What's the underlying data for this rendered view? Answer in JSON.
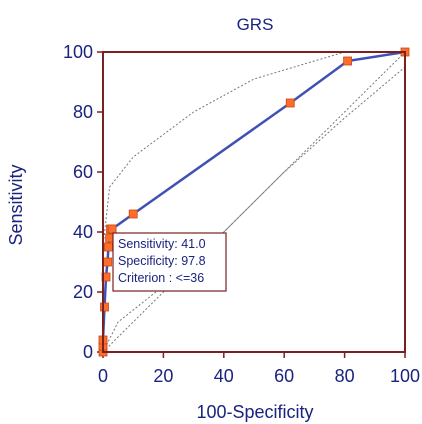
{
  "chart_data": {
    "type": "line",
    "title": "GRS",
    "xlabel": "100-Specificity",
    "ylabel": "Sensitivity",
    "xlim": [
      0,
      100
    ],
    "ylim": [
      0,
      100
    ],
    "xticks": [
      "0",
      "20",
      "40",
      "60",
      "80",
      "100"
    ],
    "yticks": [
      "0",
      "20",
      "40",
      "60",
      "80",
      "100"
    ],
    "grid": false,
    "series": [
      {
        "values_x": [
          0,
          0,
          0,
          0.5,
          1,
          1.5,
          1.8,
          2.2,
          2.5,
          3,
          10,
          62,
          81,
          100
        ],
        "values_y": [
          0,
          2,
          4,
          15,
          25,
          30,
          35,
          38,
          41,
          41,
          46,
          83,
          97,
          100
        ]
      }
    ],
    "confidence_band": {
      "upper_x": [
        0,
        2.2,
        10,
        30,
        50,
        80,
        100
      ],
      "upper_y": [
        35,
        55,
        65,
        80,
        91,
        100,
        100
      ],
      "lower_x": [
        0,
        5,
        20,
        40,
        60,
        80,
        100
      ],
      "lower_y": [
        0,
        10,
        22,
        40,
        60,
        78,
        95
      ]
    },
    "annotation": {
      "lines": [
        "Sensitivity: 41.0",
        "Specificity: 97.8",
        "Criterion : <=36"
      ]
    },
    "colors": {
      "curve": "#3f51b5",
      "marker": "#ff6d2a",
      "marker_stroke": "#c04a1a",
      "frame": "#7b2020",
      "text": "#1a237e",
      "band": "#777777"
    }
  }
}
